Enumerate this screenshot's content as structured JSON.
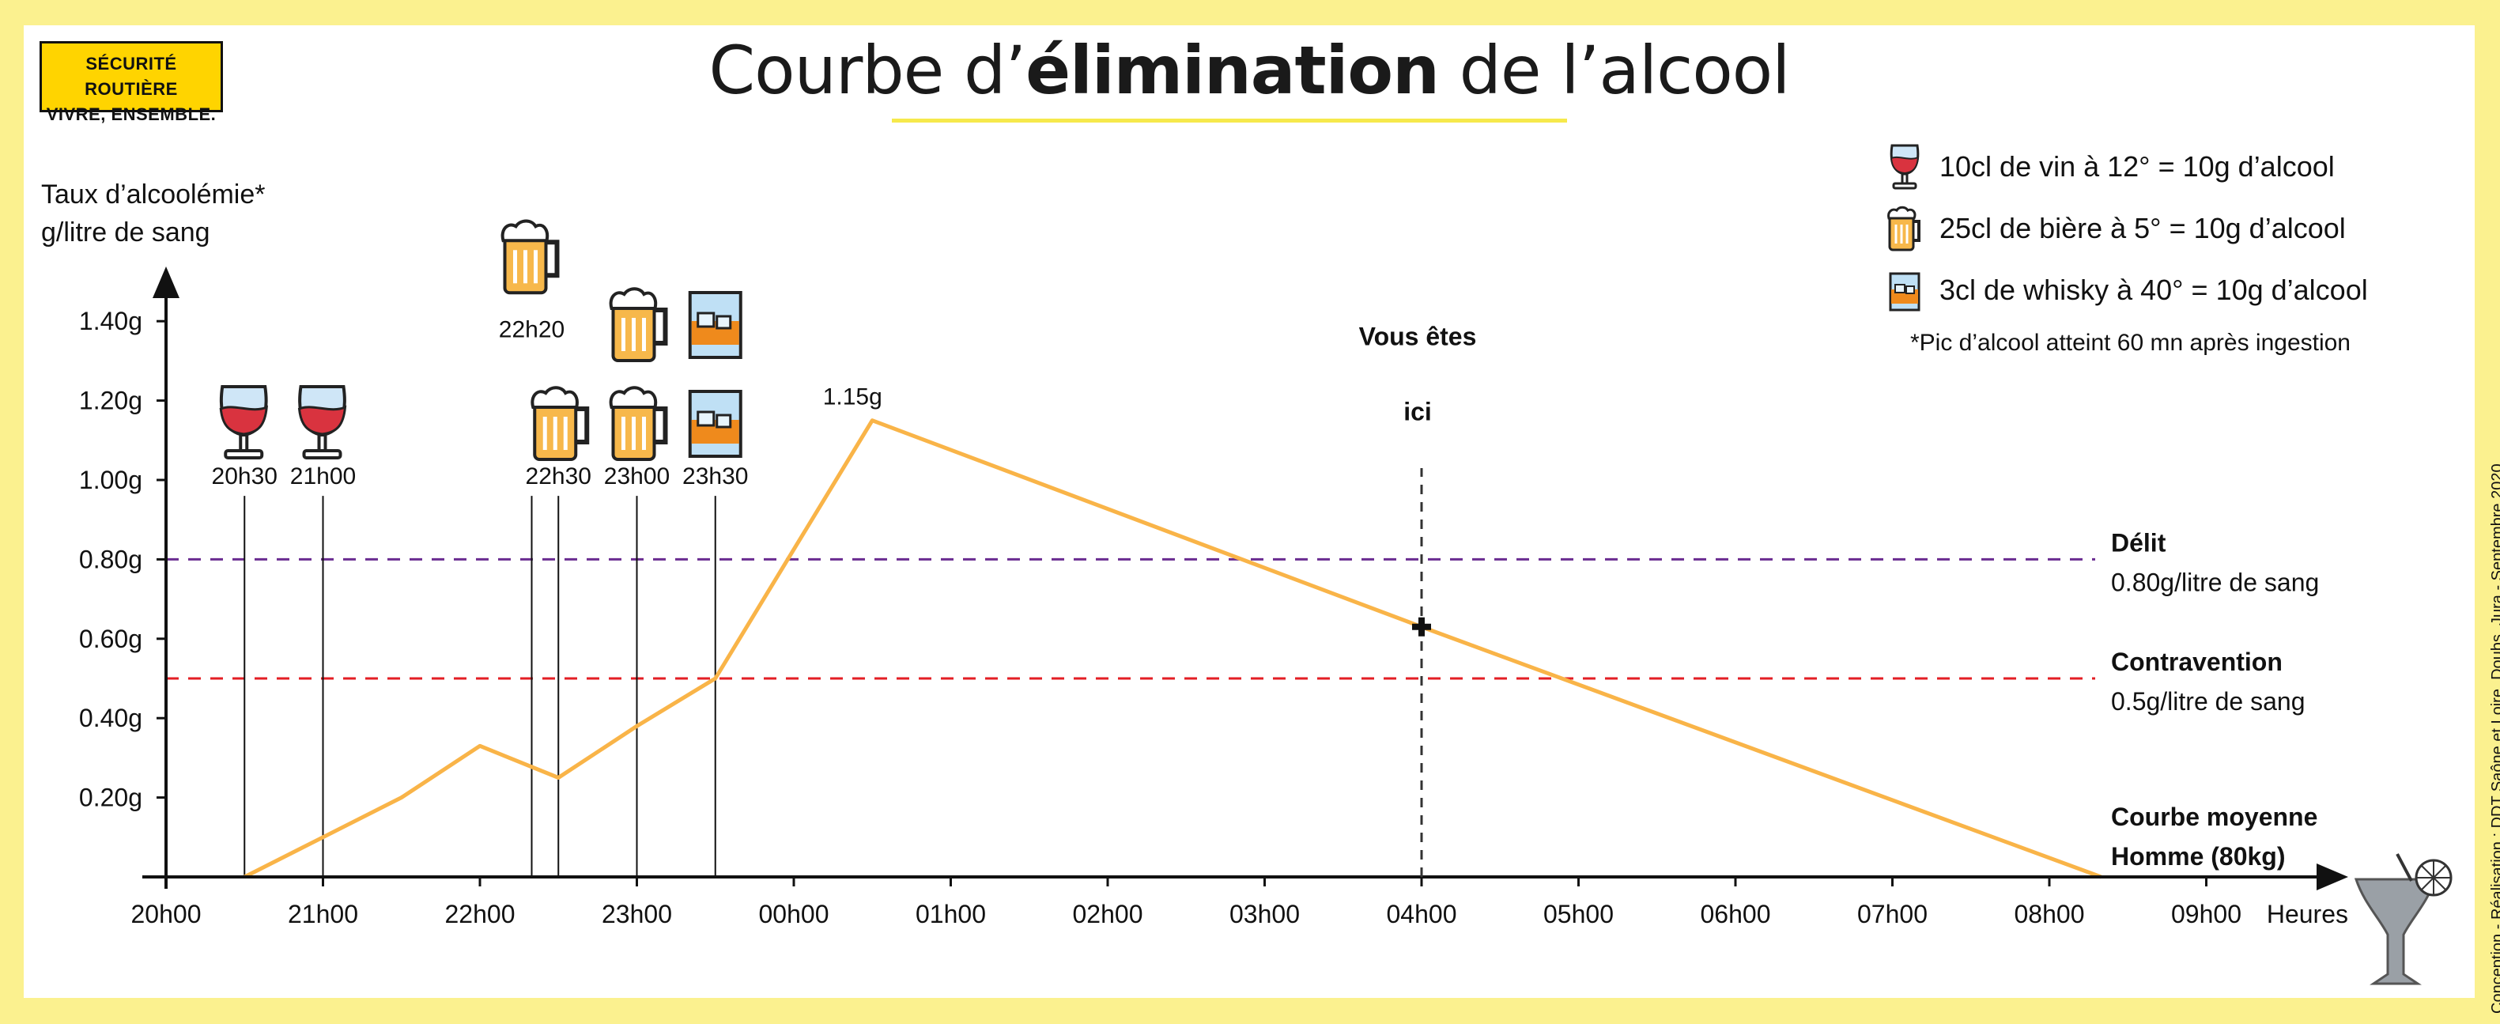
{
  "logo": {
    "line1": "SÉCURITÉ ROUTIÈRE",
    "line2": "VIVRE, ENSEMBLE."
  },
  "title": {
    "pre": "Courbe d’",
    "bold": "élimination",
    "post": " de l’alcool"
  },
  "legend": {
    "items": [
      {
        "icon": "wine-glass-icon",
        "text": "10cl de vin à 12° = 10g d’alcool"
      },
      {
        "icon": "beer-mug-icon",
        "text": "25cl de bière à 5° = 10g d’alcool"
      },
      {
        "icon": "whisky-glass-icon",
        "text": "3cl de whisky à 40° = 10g d’alcool"
      }
    ],
    "footnote": "*Pic d’alcool atteint 60 mn après ingestion"
  },
  "credit": "Conception - Réalisation : DDT Saône et Loire, Doubs, Jura - Septembre 2020",
  "colors": {
    "curve": "#f9b448",
    "delit": "#6a2c91",
    "contravention": "#e31e24",
    "background": "#fbf18f",
    "axis": "#111111"
  },
  "chart_data": {
    "type": "line",
    "ylabel_lines": [
      "Taux d’alcoolémie*",
      "g/litre de sang"
    ],
    "xlabel": "Heures",
    "x_ticks": [
      "20h00",
      "21h00",
      "22h00",
      "23h00",
      "00h00",
      "01h00",
      "02h00",
      "03h00",
      "04h00",
      "05h00",
      "06h00",
      "07h00",
      "08h00",
      "09h00"
    ],
    "y_ticks": [
      {
        "value": 0.2,
        "label": "0.20g"
      },
      {
        "value": 0.4,
        "label": "0.40g"
      },
      {
        "value": 0.6,
        "label": "0.60g"
      },
      {
        "value": 0.8,
        "label": "0.80g"
      },
      {
        "value": 1.0,
        "label": "1.00g"
      },
      {
        "value": 1.2,
        "label": "1.20g"
      },
      {
        "value": 1.4,
        "label": "1.40g"
      }
    ],
    "xlim": [
      0,
      13.9
    ],
    "ylim": [
      0,
      1.45
    ],
    "series": [
      {
        "name": "Courbe moyenne Homme (80kg)",
        "name_lines": [
          "Courbe moyenne",
          "Homme (80kg)"
        ],
        "x": [
          0.5,
          1.0,
          1.5,
          2.0,
          2.5,
          3.0,
          3.5,
          4.5,
          8.0,
          12.33
        ],
        "y": [
          0.0,
          0.1,
          0.2,
          0.33,
          0.25,
          0.38,
          0.5,
          1.15,
          0.63,
          0.0
        ]
      }
    ],
    "peak_label": {
      "x": 4.5,
      "y": 1.15,
      "text": "1.15g"
    },
    "thresholds": [
      {
        "name": "Délit",
        "value": 0.8,
        "text": "0.80g/litre de sang"
      },
      {
        "name": "Contravention",
        "value": 0.5,
        "text": "0.5g/litre de sang"
      }
    ],
    "marker": {
      "x": 8.0,
      "y": 0.63,
      "lines": [
        "Vous êtes",
        "ici"
      ]
    },
    "drinks": [
      {
        "time": "20h30",
        "x": 0.5,
        "icons": [
          "wine-glass-icon"
        ]
      },
      {
        "time": "21h00",
        "x": 1.0,
        "icons": [
          "wine-glass-icon"
        ]
      },
      {
        "time": "22h20",
        "x": 2.33,
        "icons": [
          "beer-mug-icon"
        ]
      },
      {
        "time": "22h30",
        "x": 2.5,
        "icons": [
          "beer-mug-icon"
        ]
      },
      {
        "time": "23h00",
        "x": 3.0,
        "icons": [
          "beer-mug-icon",
          "beer-mug-icon"
        ]
      },
      {
        "time": "23h30",
        "x": 3.5,
        "icons": [
          "whisky-glass-icon",
          "whisky-glass-icon"
        ]
      }
    ]
  }
}
